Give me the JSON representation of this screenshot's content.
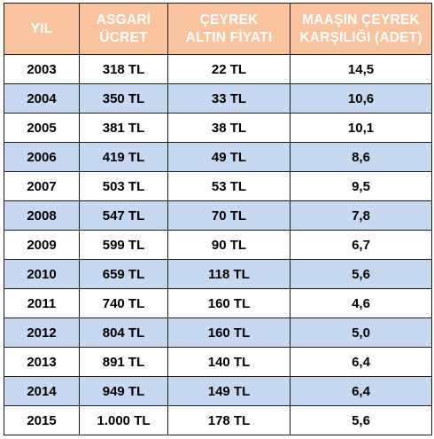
{
  "table": {
    "headers": [
      {
        "lines": [
          "YIL"
        ]
      },
      {
        "lines": [
          "ASGARİ",
          "ÜCRET"
        ]
      },
      {
        "lines": [
          "ÇEYREK",
          "ALTIN FİYATI"
        ]
      },
      {
        "lines": [
          "MAAŞIN ÇEYREK",
          "KARŞILIĞI (ADET)"
        ]
      }
    ],
    "rows": [
      [
        "2003",
        "318 TL",
        "22 TL",
        "14,5"
      ],
      [
        "2004",
        "350 TL",
        "33 TL",
        "10,6"
      ],
      [
        "2005",
        "381 TL",
        "38 TL",
        "10,1"
      ],
      [
        "2006",
        "419 TL",
        "49 TL",
        "8,6"
      ],
      [
        "2007",
        "503 TL",
        "53 TL",
        "9,5"
      ],
      [
        "2008",
        "547 TL",
        "70 TL",
        "7,8"
      ],
      [
        "2009",
        "599 TL",
        "90 TL",
        "6,7"
      ],
      [
        "2010",
        "659 TL",
        "118 TL",
        "5,6"
      ],
      [
        "2011",
        "740 TL",
        "160 TL",
        "4,6"
      ],
      [
        "2012",
        "804 TL",
        "160 TL",
        "5,0"
      ],
      [
        "2013",
        "891 TL",
        "140 TL",
        "6,4"
      ],
      [
        "2014",
        "949 TL",
        "149 TL",
        "6,4"
      ],
      [
        "2015",
        "1.000 TL",
        "178 TL",
        "5,6"
      ]
    ]
  },
  "colors": {
    "header_bg": "#f9c39d",
    "header_text": "#ffffff",
    "row_alt_bg": "#c6d9f1",
    "row_bg": "#ffffff",
    "border": "#1a1a1a"
  }
}
